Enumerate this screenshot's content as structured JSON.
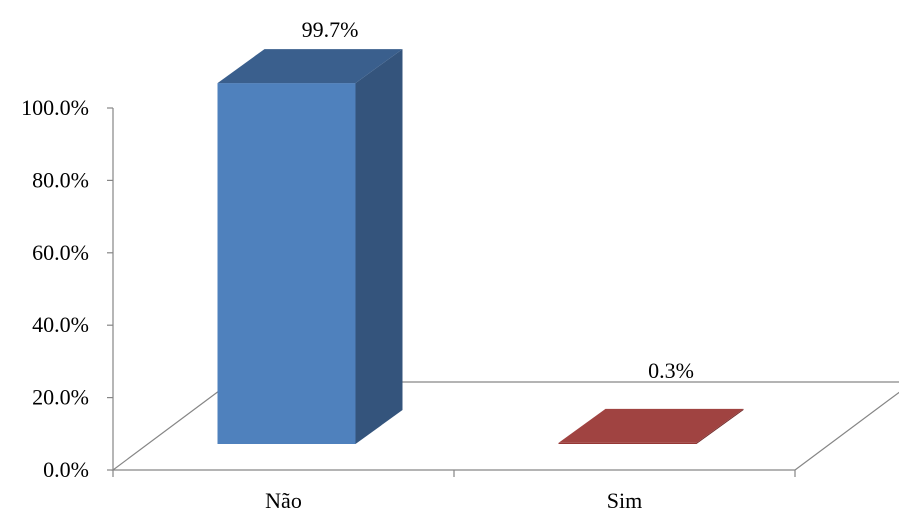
{
  "chart_data": {
    "type": "bar",
    "style": "3d-column",
    "categories": [
      "Não",
      "Sim"
    ],
    "values": [
      99.7,
      0.3
    ],
    "data_labels": [
      "99.7%",
      "0.3%"
    ],
    "y_ticks": [
      "0.0%",
      "20.0%",
      "40.0%",
      "60.0%",
      "80.0%",
      "100.0%"
    ],
    "ylim": [
      0,
      100
    ],
    "title": "",
    "xlabel": "",
    "ylabel": "",
    "grid": false,
    "legend": "none",
    "colors": {
      "bar_front": [
        "#4F81BD",
        "#953735"
      ],
      "bar_side": [
        "#34547C",
        "#6F2827"
      ],
      "bar_top": [
        "#3A5F8D",
        "#A04341"
      ],
      "axis": "#868686"
    }
  }
}
